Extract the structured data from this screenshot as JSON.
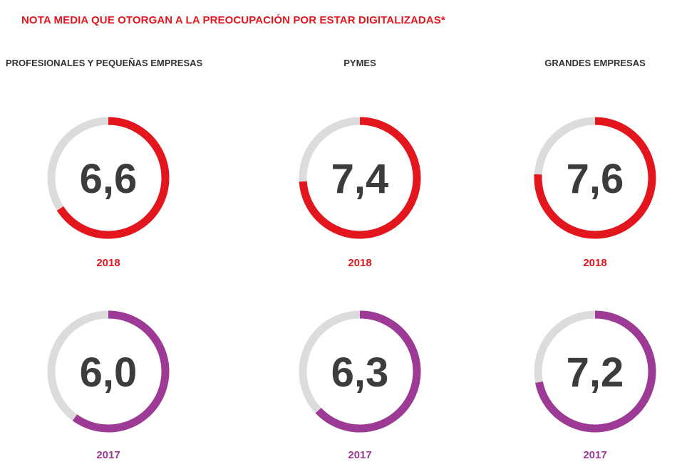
{
  "title": "NOTA MEDIA QUE OTORGAN A LA PREOCUPACIÓN POR ESTAR DIGITALIZADAS*",
  "colors": {
    "title": "#e3161e",
    "track": "#dcdcdc",
    "year_2018": "#e3161e",
    "year_2017": "#9c3a96",
    "value_text": "#3c3c3c"
  },
  "chart_data": {
    "type": "gauge",
    "scale_max": 10,
    "categories": [
      "PROFESIONALES Y PEQUEÑAS EMPRESAS",
      "PYMES",
      "GRANDES EMPRESAS"
    ],
    "series": [
      {
        "name": "2018",
        "values": [
          6.6,
          7.4,
          7.6
        ],
        "labels": [
          "6,6",
          "7,4",
          "7,6"
        ]
      },
      {
        "name": "2017",
        "values": [
          6.0,
          6.3,
          7.2
        ],
        "labels": [
          "6,0",
          "6,3",
          "7,2"
        ]
      }
    ]
  }
}
